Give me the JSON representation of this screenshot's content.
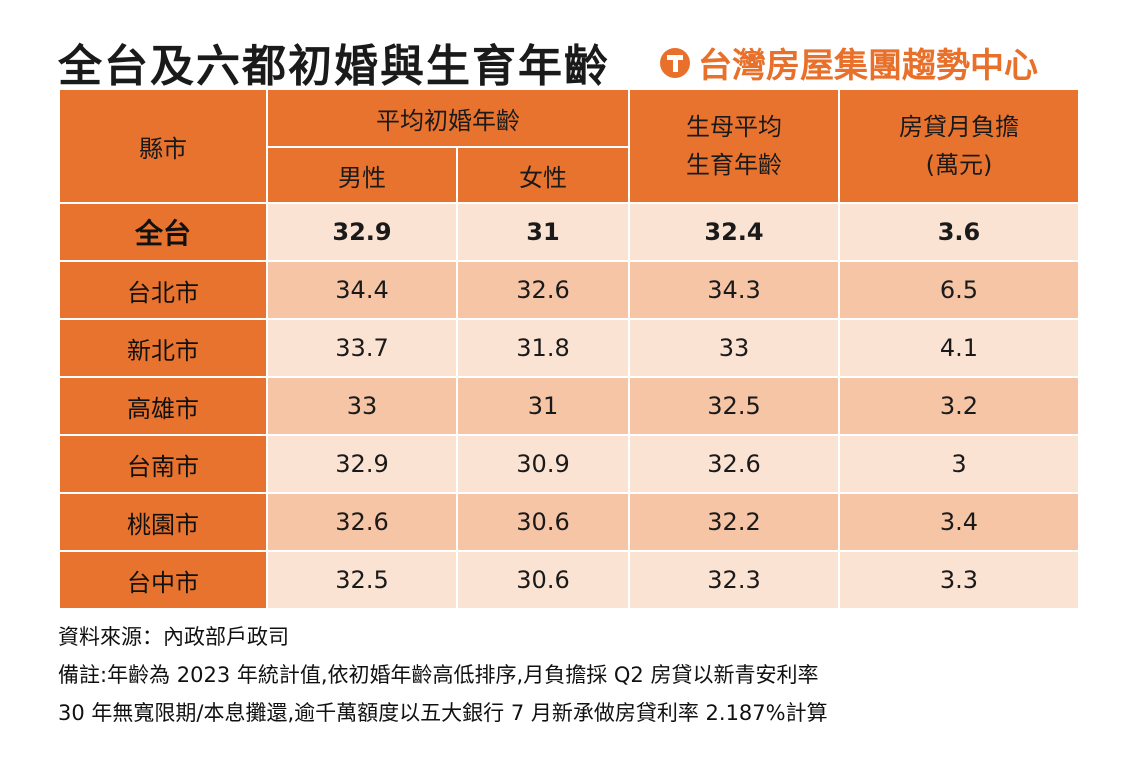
{
  "title": "全台及六都初婚與生育年齡",
  "brand": {
    "name": "台灣房屋集團趨勢中心",
    "logo": "taiwan-realty-logo-icon",
    "color": "#e8702a"
  },
  "colors": {
    "header": "#e8732e",
    "row_light": "#fbe3d4",
    "row_dark": "#f5c5a6"
  },
  "table": {
    "headers": {
      "city": "縣市",
      "marriage_group": "平均初婚年齡",
      "male": "男性",
      "female": "女性",
      "birth_line1": "生母平均",
      "birth_line2": "生育年齡",
      "mortgage_line1": "房貸月負擔",
      "mortgage_line2": "(萬元)"
    },
    "rows": [
      {
        "city": "全台",
        "male": "32.9",
        "female": "31",
        "birth": "32.4",
        "mortgage": "3.6"
      },
      {
        "city": "台北市",
        "male": "34.4",
        "female": "32.6",
        "birth": "34.3",
        "mortgage": "6.5"
      },
      {
        "city": "新北市",
        "male": "33.7",
        "female": "31.8",
        "birth": "33",
        "mortgage": "4.1"
      },
      {
        "city": "高雄市",
        "male": "33",
        "female": "31",
        "birth": "32.5",
        "mortgage": "3.2"
      },
      {
        "city": "台南市",
        "male": "32.9",
        "female": "30.9",
        "birth": "32.6",
        "mortgage": "3"
      },
      {
        "city": "桃園市",
        "male": "32.6",
        "female": "30.6",
        "birth": "32.2",
        "mortgage": "3.4"
      },
      {
        "city": "台中市",
        "male": "32.5",
        "female": "30.6",
        "birth": "32.3",
        "mortgage": "3.3"
      }
    ]
  },
  "notes": {
    "source": "資料來源：內政部戶政司",
    "remark_line1": "備註:年齡為 2023 年統計值,依初婚年齡高低排序,月負擔採 Q2 房貸以新青安利率",
    "remark_line2": "30 年無寬限期/本息攤還,逾千萬額度以五大銀行 7 月新承做房貸利率 2.187%計算"
  }
}
